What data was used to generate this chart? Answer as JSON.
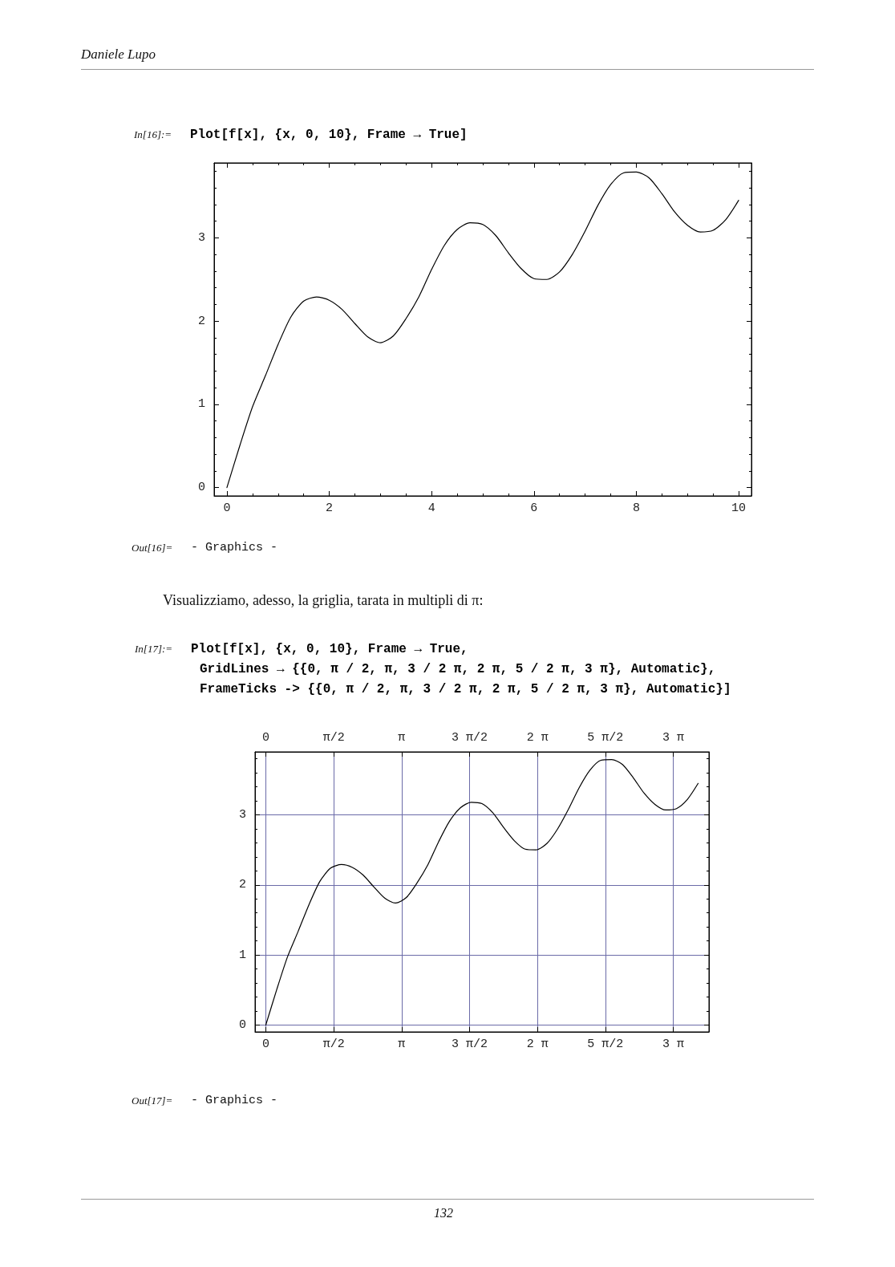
{
  "chart_data": [
    {
      "type": "line",
      "annotations": [
        "Daniele Lupo",
        "In[16]:=",
        "Plot[f[x], {x, 0, 10}, Frame → True]",
        "Out[16]=",
        "- Graphics -"
      ],
      "x": [
        0,
        0.25,
        0.5,
        0.75,
        1.0,
        1.25,
        1.5,
        1.75,
        2.0,
        2.25,
        2.5,
        2.75,
        3.0,
        3.25,
        3.5,
        3.75,
        4.0,
        4.25,
        4.5,
        4.75,
        5.0,
        5.25,
        5.5,
        5.75,
        6.0,
        6.25,
        6.5,
        6.75,
        7.0,
        7.25,
        7.5,
        7.75,
        8.0,
        8.25,
        8.5,
        8.75,
        9.0,
        9.25,
        9.5,
        9.75,
        10.0
      ],
      "values": [
        0,
        0.5,
        0.97,
        1.34,
        1.72,
        2.05,
        2.24,
        2.29,
        2.25,
        2.14,
        1.97,
        1.81,
        1.74,
        1.82,
        2.03,
        2.29,
        2.62,
        2.91,
        3.1,
        3.18,
        3.16,
        3.03,
        2.82,
        2.63,
        2.51,
        2.5,
        2.59,
        2.8,
        3.08,
        3.39,
        3.64,
        3.78,
        3.79,
        3.72,
        3.53,
        3.31,
        3.15,
        3.07,
        3.09,
        3.22,
        3.45
      ],
      "color": "#000000",
      "xlim": [
        -0.25,
        10.25
      ],
      "ylim": [
        -0.1,
        3.9
      ],
      "xticks": [
        0,
        2,
        4,
        6,
        8,
        10
      ],
      "yticks": [
        0,
        1,
        2,
        3
      ],
      "grid": false
    },
    {
      "type": "line",
      "annotations": [
        "Visualizziamo, adesso, la griglia, tarata in multipli di π:",
        "In[17]:=",
        "Plot[f[x], {x, 0, 10}, Frame → True,",
        "GridLines → {{0, π / 2, π, 3 / 2 π, 2 π, 5 / 2 π, 3 π}, Automatic},",
        "FrameTicks -> {{0, π / 2, π, 3 / 2 π, 2 π, 5 / 2 π, 3 π}, Automatic}]",
        "Out[17]=",
        "- Graphics -",
        "132"
      ],
      "x": [
        0,
        0.25,
        0.5,
        0.75,
        1.0,
        1.25,
        1.5,
        1.75,
        2.0,
        2.25,
        2.5,
        2.75,
        3.0,
        3.25,
        3.5,
        3.75,
        4.0,
        4.25,
        4.5,
        4.75,
        5.0,
        5.25,
        5.5,
        5.75,
        6.0,
        6.25,
        6.5,
        6.75,
        7.0,
        7.25,
        7.5,
        7.75,
        8.0,
        8.25,
        8.5,
        8.75,
        9.0,
        9.25,
        9.5,
        9.75,
        10.0
      ],
      "values": [
        0,
        0.5,
        0.97,
        1.34,
        1.72,
        2.05,
        2.24,
        2.29,
        2.25,
        2.14,
        1.97,
        1.81,
        1.74,
        1.82,
        2.03,
        2.29,
        2.62,
        2.91,
        3.1,
        3.18,
        3.16,
        3.03,
        2.82,
        2.63,
        2.51,
        2.5,
        2.59,
        2.8,
        3.08,
        3.39,
        3.64,
        3.78,
        3.79,
        3.72,
        3.53,
        3.31,
        3.15,
        3.07,
        3.09,
        3.22,
        3.45
      ],
      "color": "#000000",
      "xlim": [
        -0.25,
        10.25
      ],
      "ylim": [
        -0.1,
        3.9
      ],
      "xticks": [
        0,
        {
          "value": 1.5708,
          "label": "π/2"
        },
        {
          "value": 3.1416,
          "label": "π"
        },
        {
          "value": 4.7124,
          "label": "3 π/2"
        },
        {
          "value": 6.2832,
          "label": "2 π"
        },
        {
          "value": 7.854,
          "label": "5 π/2"
        },
        {
          "value": 9.4248,
          "label": "3 π"
        }
      ],
      "x2lim": [
        -0.25,
        10.25
      ],
      "x2ticks": [
        0,
        {
          "value": 1.5708,
          "label": "π/2"
        },
        {
          "value": 3.1416,
          "label": "π"
        },
        {
          "value": 4.7124,
          "label": "3 π/2"
        },
        {
          "value": 6.2832,
          "label": "2 π"
        },
        {
          "value": 7.854,
          "label": "5 π/2"
        },
        {
          "value": 9.4248,
          "label": "3 π"
        }
      ],
      "yticks": [
        0,
        1,
        2,
        3
      ],
      "grid": true
    }
  ]
}
